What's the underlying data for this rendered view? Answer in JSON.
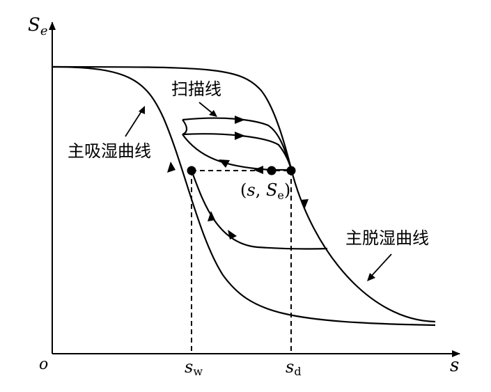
{
  "axes": {
    "y_label_main": "S",
    "y_label_sub": "e",
    "x_label": "s",
    "origin_label": "o"
  },
  "ticks": {
    "sw_main": "s",
    "sw_sub": "w",
    "sd_main": "s",
    "sd_sub": "d"
  },
  "labels": {
    "scan_line": "扫描线",
    "main_wetting_curve": "主吸湿曲线",
    "main_drying_curve": "主脱湿曲线",
    "point_open": "(",
    "point_s": "s",
    "point_comma": ", ",
    "point_S": "S",
    "point_sub": "e",
    "point_close": ")"
  },
  "colors": {
    "stroke": "#000000",
    "background": "#ffffff"
  }
}
